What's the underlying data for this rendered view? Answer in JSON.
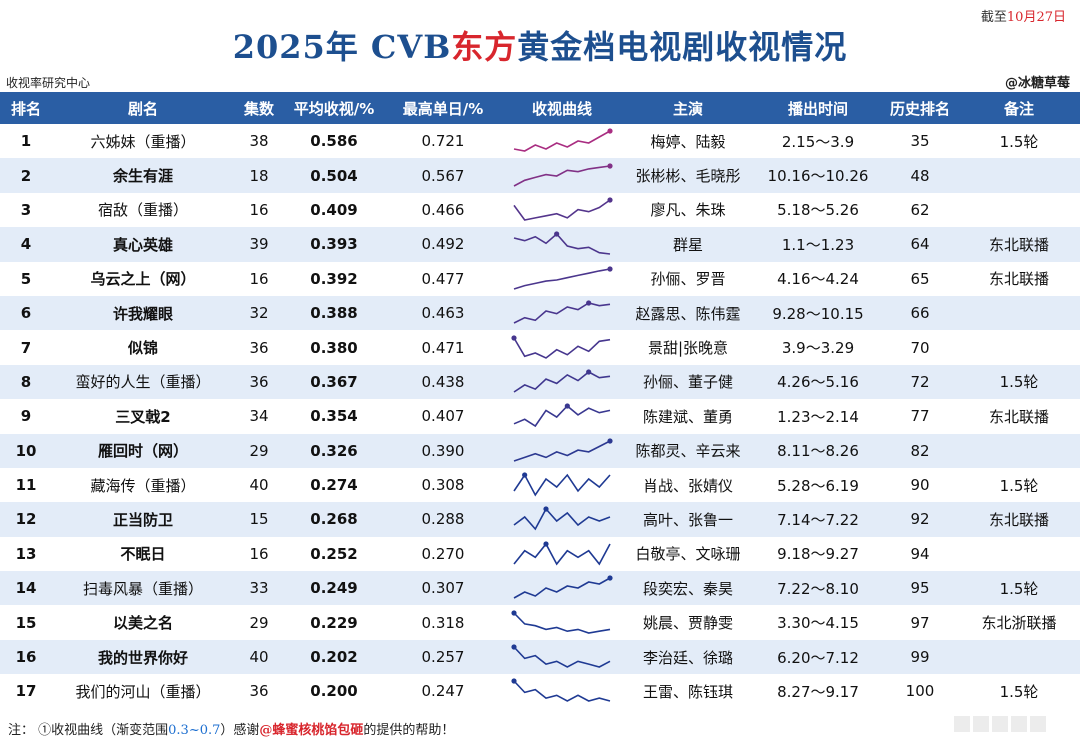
{
  "date_prefix": "截至",
  "date_value": "10月27日",
  "title_part1": "2025年 CVB",
  "title_accent": "东方",
  "title_part2": "黄金档电视剧收视情况",
  "source": "收视率研究中心",
  "credit": "@冰糖草莓",
  "columns": [
    "排名",
    "剧名",
    "集数",
    "平均收视/%",
    "最高单日/%",
    "收视曲线",
    "主演",
    "播出时间",
    "历史排名",
    "备注"
  ],
  "rows": [
    {
      "rank": "1",
      "name": "六姊妹（重播）",
      "bold": false,
      "episodes": "38",
      "avg": "0.586",
      "peak": "0.721",
      "cast": "梅婷、陆毅",
      "period": "2.15～3.9",
      "history": "35",
      "note": "1.5轮",
      "curve": [
        0.63,
        0.62,
        0.65,
        0.63,
        0.66,
        0.64,
        0.67,
        0.66,
        0.69,
        0.72
      ]
    },
    {
      "rank": "2",
      "name": "余生有涯",
      "bold": true,
      "episodes": "18",
      "avg": "0.504",
      "peak": "0.567",
      "cast": "张彬彬、毛晓彤",
      "period": "10.16～10.26",
      "history": "48",
      "note": "",
      "curve": [
        0.43,
        0.47,
        0.49,
        0.51,
        0.5,
        0.54,
        0.53,
        0.55,
        0.56,
        0.57
      ]
    },
    {
      "rank": "3",
      "name": "宿敌（重播）",
      "bold": false,
      "episodes": "16",
      "avg": "0.409",
      "peak": "0.466",
      "cast": "廖凡、朱珠",
      "period": "5.18～5.26",
      "history": "62",
      "note": "",
      "curve": [
        0.44,
        0.37,
        0.38,
        0.39,
        0.4,
        0.38,
        0.42,
        0.41,
        0.43,
        0.466
      ]
    },
    {
      "rank": "4",
      "name": "真心英雄",
      "bold": true,
      "episodes": "39",
      "avg": "0.393",
      "peak": "0.492",
      "cast": "群星",
      "period": "1.1～1.23",
      "history": "64",
      "note": "东北联播",
      "curve": [
        0.46,
        0.44,
        0.47,
        0.42,
        0.49,
        0.4,
        0.38,
        0.39,
        0.35,
        0.34
      ]
    },
    {
      "rank": "5",
      "name": "乌云之上（网）",
      "bold": true,
      "episodes": "16",
      "avg": "0.392",
      "peak": "0.477",
      "cast": "孙俪、罗晋",
      "period": "4.16～4.24",
      "history": "65",
      "note": "东北联播",
      "curve": [
        0.3,
        0.33,
        0.35,
        0.37,
        0.38,
        0.4,
        0.42,
        0.44,
        0.46,
        0.477
      ]
    },
    {
      "rank": "6",
      "name": "许我耀眼",
      "bold": true,
      "episodes": "32",
      "avg": "0.388",
      "peak": "0.463",
      "cast": "赵露思、陈伟霆",
      "period": "9.28～10.15",
      "history": "66",
      "note": "",
      "curve": [
        0.31,
        0.35,
        0.33,
        0.4,
        0.38,
        0.43,
        0.41,
        0.46,
        0.44,
        0.45
      ]
    },
    {
      "rank": "7",
      "name": "似锦",
      "bold": true,
      "episodes": "36",
      "avg": "0.380",
      "peak": "0.471",
      "cast": "景甜|张晚意",
      "period": "3.9～3.29",
      "history": "70",
      "note": "",
      "curve": [
        0.47,
        0.36,
        0.38,
        0.35,
        0.4,
        0.37,
        0.42,
        0.39,
        0.45,
        0.46
      ]
    },
    {
      "rank": "8",
      "name": "蛮好的人生（重播）",
      "bold": false,
      "episodes": "36",
      "avg": "0.367",
      "peak": "0.438",
      "cast": "孙俪、董子健",
      "period": "4.26～5.16",
      "history": "72",
      "note": "1.5轮",
      "curve": [
        0.3,
        0.35,
        0.32,
        0.39,
        0.36,
        0.42,
        0.38,
        0.44,
        0.4,
        0.41
      ]
    },
    {
      "rank": "9",
      "name": "三叉戟2",
      "bold": true,
      "episodes": "34",
      "avg": "0.354",
      "peak": "0.407",
      "cast": "陈建斌、董勇",
      "period": "1.23～2.14",
      "history": "77",
      "note": "东北联播",
      "curve": [
        0.32,
        0.34,
        0.31,
        0.38,
        0.35,
        0.4,
        0.36,
        0.39,
        0.37,
        0.38
      ]
    },
    {
      "rank": "10",
      "name": "雁回时（网）",
      "bold": true,
      "episodes": "29",
      "avg": "0.326",
      "peak": "0.390",
      "cast": "陈都灵、辛云来",
      "period": "8.11～8.26",
      "history": "82",
      "note": "",
      "curve": [
        0.28,
        0.3,
        0.32,
        0.3,
        0.33,
        0.31,
        0.34,
        0.33,
        0.36,
        0.39
      ]
    },
    {
      "rank": "11",
      "name": "藏海传（重播）",
      "bold": false,
      "episodes": "40",
      "avg": "0.274",
      "peak": "0.308",
      "cast": "肖战、张婧仪",
      "period": "5.28～6.19",
      "history": "90",
      "note": "1.5轮",
      "curve": [
        0.26,
        0.3,
        0.25,
        0.29,
        0.27,
        0.3,
        0.26,
        0.29,
        0.27,
        0.3
      ]
    },
    {
      "rank": "12",
      "name": "正当防卫",
      "bold": true,
      "episodes": "15",
      "avg": "0.268",
      "peak": "0.288",
      "cast": "高叶、张鲁一",
      "period": "7.14～7.22",
      "history": "92",
      "note": "东北联播",
      "curve": [
        0.25,
        0.27,
        0.24,
        0.29,
        0.26,
        0.28,
        0.25,
        0.27,
        0.26,
        0.27
      ]
    },
    {
      "rank": "13",
      "name": "不眠日",
      "bold": true,
      "episodes": "16",
      "avg": "0.252",
      "peak": "0.270",
      "cast": "白敬亭、文咏珊",
      "period": "9.18～9.27",
      "history": "94",
      "note": "",
      "curve": [
        0.24,
        0.26,
        0.25,
        0.27,
        0.24,
        0.26,
        0.25,
        0.26,
        0.24,
        0.27
      ]
    },
    {
      "rank": "14",
      "name": "扫毒风暴（重播）",
      "bold": false,
      "episodes": "33",
      "avg": "0.249",
      "peak": "0.307",
      "cast": "段奕宏、秦昊",
      "period": "7.22～8.10",
      "history": "95",
      "note": "1.5轮",
      "curve": [
        0.2,
        0.23,
        0.21,
        0.25,
        0.23,
        0.26,
        0.25,
        0.28,
        0.27,
        0.3
      ]
    },
    {
      "rank": "15",
      "name": "以美之名",
      "bold": true,
      "episodes": "29",
      "avg": "0.229",
      "peak": "0.318",
      "cast": "姚晨、贾静雯",
      "period": "3.30～4.15",
      "history": "97",
      "note": "东北浙联播",
      "curve": [
        0.31,
        0.25,
        0.24,
        0.22,
        0.23,
        0.21,
        0.22,
        0.2,
        0.21,
        0.22
      ]
    },
    {
      "rank": "16",
      "name": "我的世界你好",
      "bold": true,
      "episodes": "40",
      "avg": "0.202",
      "peak": "0.257",
      "cast": "李治廷、徐璐",
      "period": "6.20～7.12",
      "history": "99",
      "note": "",
      "curve": [
        0.25,
        0.21,
        0.22,
        0.19,
        0.2,
        0.18,
        0.2,
        0.19,
        0.18,
        0.2
      ]
    },
    {
      "rank": "17",
      "name": "我们的河山（重播）",
      "bold": false,
      "episodes": "36",
      "avg": "0.200",
      "peak": "0.247",
      "cast": "王雷、陈钰琪",
      "period": "8.27～9.17",
      "history": "100",
      "note": "1.5轮",
      "curve": [
        0.24,
        0.2,
        0.21,
        0.18,
        0.19,
        0.17,
        0.19,
        0.17,
        0.18,
        0.17
      ]
    }
  ],
  "footer_part1": "注：  ①收视曲线（渐变范围",
  "footer_range": "0.3~0.7",
  "footer_part2": "）感谢",
  "footer_thanks": "@蜂蜜核桃馅包砸",
  "footer_part3": "的提供的帮助！",
  "curve_range": [
    0.3,
    0.7
  ],
  "colors": {
    "header": "#2a5ea4",
    "alt_row": "#e3ecf8",
    "curve_low": "#1f3a93",
    "curve_high": "#e0287a"
  }
}
